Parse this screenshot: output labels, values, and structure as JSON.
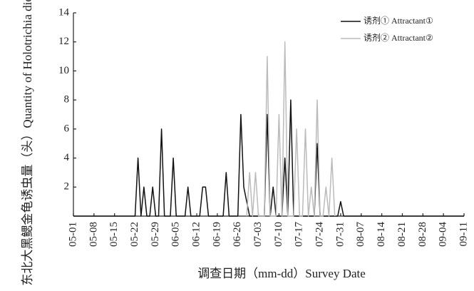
{
  "chart_data": {
    "type": "line",
    "x_label": "调查日期（mm-dd）Survey Date",
    "y_label": "东北大黑鳃金龟诱虫量（头）Quantity of Holotrichia diomphalia",
    "xlim": [
      "05-01",
      "09-11"
    ],
    "xticks": [
      "05-01",
      "05-08",
      "05-15",
      "05-22",
      "05-29",
      "06-05",
      "06-12",
      "06-19",
      "06-26",
      "07-03",
      "07-10",
      "07-17",
      "07-24",
      "07-31",
      "08-07",
      "08-14",
      "08-21",
      "08-28",
      "09-04",
      "09-11"
    ],
    "ylim": [
      0,
      14
    ],
    "yticks": [
      2,
      4,
      6,
      8,
      10,
      12,
      14
    ],
    "legend": "upper right",
    "series": [
      {
        "name": "诱剂① Attractant①",
        "color": "#111111",
        "x": [
          "05-01",
          "05-22",
          "05-23",
          "05-24",
          "05-25",
          "05-26",
          "05-27",
          "05-28",
          "05-29",
          "05-30",
          "05-31",
          "06-01",
          "06-03",
          "06-04",
          "06-05",
          "06-08",
          "06-09",
          "06-10",
          "06-13",
          "06-14",
          "06-15",
          "06-16",
          "06-21",
          "06-22",
          "06-23",
          "06-26",
          "06-27",
          "06-28",
          "06-29",
          "06-30",
          "07-05",
          "07-06",
          "07-07",
          "07-08",
          "07-09",
          "07-11",
          "07-12",
          "07-13",
          "07-14",
          "07-15",
          "07-22",
          "07-23",
          "07-24",
          "07-30",
          "07-31",
          "08-01",
          "09-11"
        ],
        "values": [
          0,
          0,
          4,
          0,
          2,
          0,
          0,
          2,
          0,
          0,
          6,
          0,
          0,
          4,
          0,
          0,
          2,
          0,
          0,
          2,
          2,
          0,
          0,
          3,
          0,
          0,
          7,
          2,
          1,
          0,
          0,
          7,
          0,
          2,
          0,
          0,
          4,
          0,
          8,
          0,
          0,
          5,
          0,
          0,
          1,
          0,
          0
        ]
      },
      {
        "name": "诱剂② Attractant②",
        "color": "#bbbbbb",
        "x": [
          "06-29",
          "06-30",
          "07-01",
          "07-02",
          "07-03",
          "07-05",
          "07-06",
          "07-07",
          "07-09",
          "07-10",
          "07-11",
          "07-12",
          "07-13",
          "07-15",
          "07-16",
          "07-17",
          "07-18",
          "07-19",
          "07-20",
          "07-21",
          "07-22",
          "07-23",
          "07-24",
          "07-25",
          "07-26",
          "07-27",
          "07-28",
          "07-29"
        ],
        "values": [
          0,
          3,
          0,
          3,
          0,
          0,
          11,
          0,
          0,
          7,
          0,
          12,
          0,
          0,
          6,
          0,
          0,
          6,
          0,
          2,
          0,
          8,
          0,
          0,
          2,
          0,
          4,
          0
        ]
      }
    ]
  }
}
